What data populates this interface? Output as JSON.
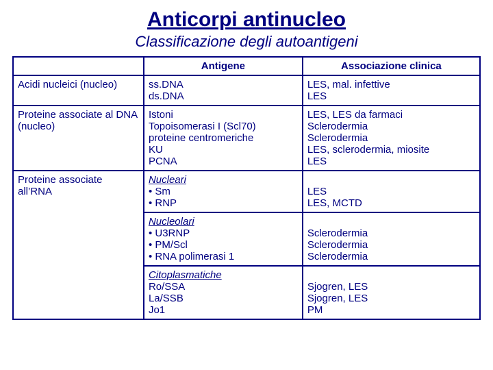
{
  "title_fontsize": "30px",
  "subtitle_fontsize": "22px",
  "cell_fontsize": "15px",
  "text_color": "#000080",
  "border_color": "#000080",
  "title": "Anticorpi antinucleo",
  "subtitle": "Classificazione degli autoantigeni",
  "headers": {
    "col0": "",
    "col1": "Antigene",
    "col2": "Associazione clinica"
  },
  "row1": {
    "cat": "Acidi nucleici (nucleo)",
    "ag_l1": "ss.DNA",
    "ag_l2": "ds.DNA",
    "assoc_l1": "LES, mal. infettive",
    "assoc_l2": "LES"
  },
  "row2": {
    "cat": "Proteine associate al DNA (nucleo)",
    "ag_l1": "Istoni",
    "ag_l2": "Topoisomerasi I (Scl70)",
    "ag_l3": "proteine centromeriche",
    "ag_l4": "KU",
    "ag_l5": "PCNA",
    "assoc_l1": "LES, LES da farmaci",
    "assoc_l2": "Sclerodermia",
    "assoc_l3": "Sclerodermia",
    "assoc_l4": "LES, sclerodermia, miosite",
    "assoc_l5": "LES"
  },
  "row3": {
    "cat": "Proteine associate all’RNA",
    "ag_h": "Nucleari",
    "ag_b1": "• Sm",
    "ag_b2": "• RNP",
    "assoc_l1": "LES",
    "assoc_l2": "LES, MCTD"
  },
  "row4": {
    "ag_h": "Nucleolari",
    "ag_b1": "• U3RNP",
    "ag_b2": "• PM/Scl",
    "ag_b3": "• RNA polimerasi 1",
    "assoc_l1": "Sclerodermia",
    "assoc_l2": "Sclerodermia",
    "assoc_l3": "Sclerodermia"
  },
  "row5": {
    "ag_h": "Citoplasmatiche",
    "ag_l1": "Ro/SSA",
    "ag_l2": "La/SSB",
    "ag_l3": "Jo1",
    "assoc_l1": "Sjogren, LES",
    "assoc_l2": "Sjogren, LES",
    "assoc_l3": "PM"
  }
}
